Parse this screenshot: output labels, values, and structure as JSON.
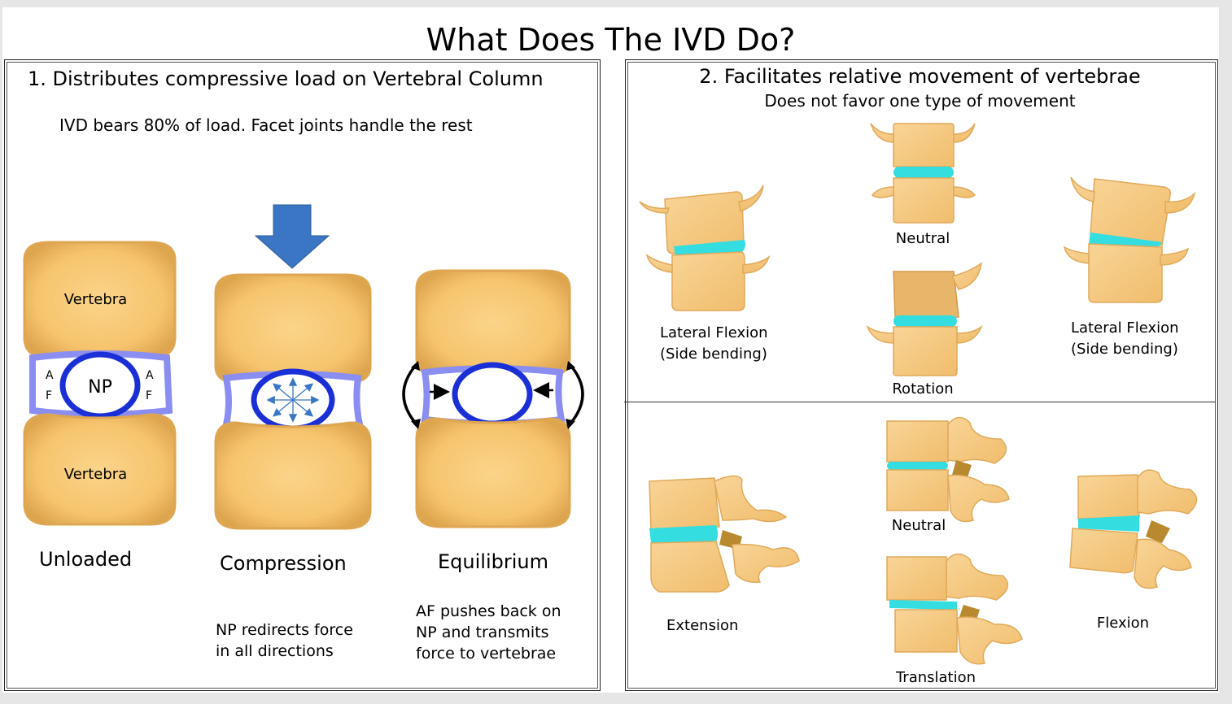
{
  "title": "What Does The IVD Do?",
  "left_panel": {
    "heading": "1. Distributes compressive load on Vertebral Column",
    "subheading": "IVD bears 80% of load.  Facet joints handle the rest",
    "vertebra_top_label": "Vertebra",
    "vertebra_bottom_label": "Vertebra",
    "np_label": "NP",
    "af_left_a": "A",
    "af_left_f": "F",
    "af_right_a": "A",
    "af_right_f": "F",
    "states": [
      {
        "label": "Unloaded",
        "caption": []
      },
      {
        "label": "Compression",
        "caption": [
          "NP redirects force",
          "in all directions"
        ]
      },
      {
        "label": "Equilibrium",
        "caption": [
          "AF pushes back on",
          "NP and transmits",
          "force to vertebrae"
        ]
      }
    ]
  },
  "right_panel": {
    "heading": "2. Facilitates relative movement of vertebrae",
    "subheading": "Does not favor one type of movement",
    "top_labels": {
      "left": [
        "Lateral Flexion",
        "(Side bending)"
      ],
      "neutral": "Neutral",
      "rotation": "Rotation",
      "right": [
        "Lateral Flexion",
        "(Side bending)"
      ]
    },
    "bottom_labels": {
      "extension": "Extension",
      "neutral": "Neutral",
      "translation": "Translation",
      "flexion": "Flexion"
    }
  },
  "colors": {
    "bone": "#f6c46d",
    "bone_edge": "#d9a04a",
    "disc_ring": "#1a30d6",
    "disc_outer": "#8a8ef0",
    "arrow_blue": "#3a76c4",
    "cyan_disc": "#33dde0",
    "facet": "#b8892e"
  }
}
